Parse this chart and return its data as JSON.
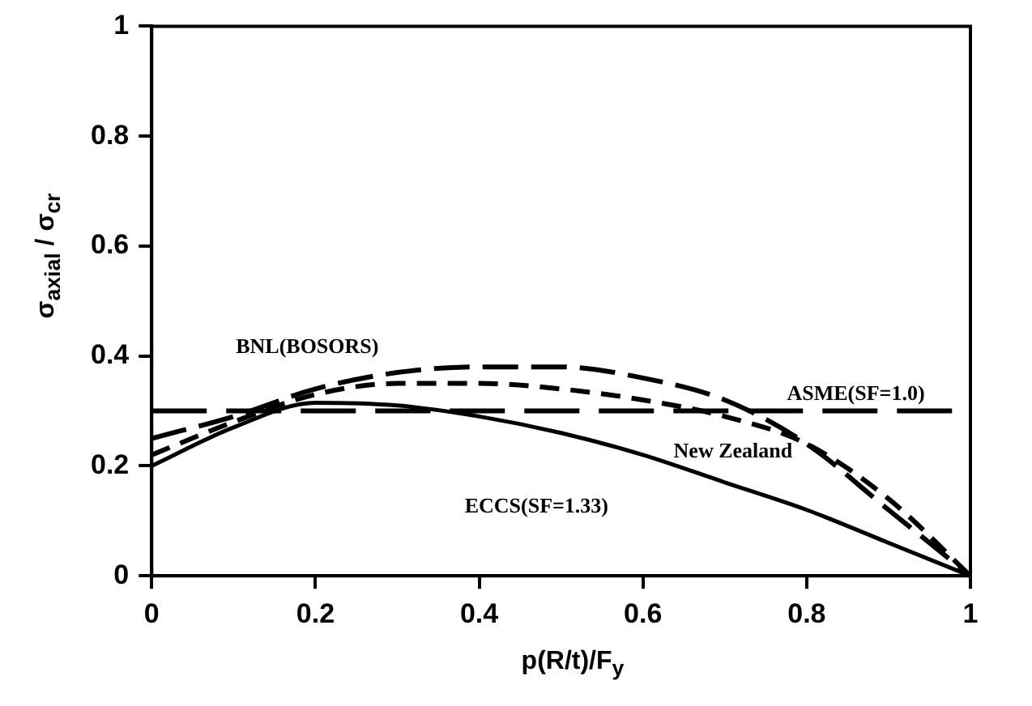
{
  "chart_data": {
    "type": "line",
    "xlabel": "p(R/t)/F$_{y}$",
    "ylabel": "σ$_{axial}$ / σ$_{cr}$",
    "x": [
      0,
      0.1,
      0.2,
      0.3,
      0.4,
      0.5,
      0.6,
      0.7,
      0.8,
      0.9,
      1
    ],
    "series": [
      {
        "name": "BNL(BOSORS)",
        "color": "#000000",
        "line_style": "dashed",
        "values": [
          0.25,
          0.29,
          0.34,
          0.37,
          0.38,
          0.38,
          0.36,
          0.32,
          0.24,
          0.12,
          0
        ]
      },
      {
        "name": "ASME(SF=1.0)",
        "color": "#000000",
        "line_style": "dashed",
        "values": [
          0.3,
          0.3,
          0.3,
          0.3,
          0.3,
          0.3,
          0.3,
          0.3,
          0.3,
          0.3,
          0.3
        ]
      },
      {
        "name": "New Zealand",
        "color": "#000000",
        "line_style": "dashed",
        "values": [
          0.22,
          0.28,
          0.33,
          0.35,
          0.35,
          0.34,
          0.32,
          0.29,
          0.24,
          0.14,
          0
        ]
      },
      {
        "name": "ECCS(SF=1.33)",
        "color": "#000000",
        "line_style": "solid",
        "values": [
          0.2,
          0.27,
          0.315,
          0.31,
          0.29,
          0.26,
          0.22,
          0.17,
          0.12,
          0.06,
          0
        ]
      }
    ],
    "xlim": [
      0,
      1
    ],
    "ylim": [
      0,
      1
    ],
    "xticks": [
      0,
      0.2,
      0.4,
      0.6,
      0.8,
      1
    ],
    "yticks": [
      0,
      0.2,
      0.4,
      0.6,
      0.8,
      1
    ],
    "grid": false,
    "legend": false,
    "marker": "none"
  }
}
